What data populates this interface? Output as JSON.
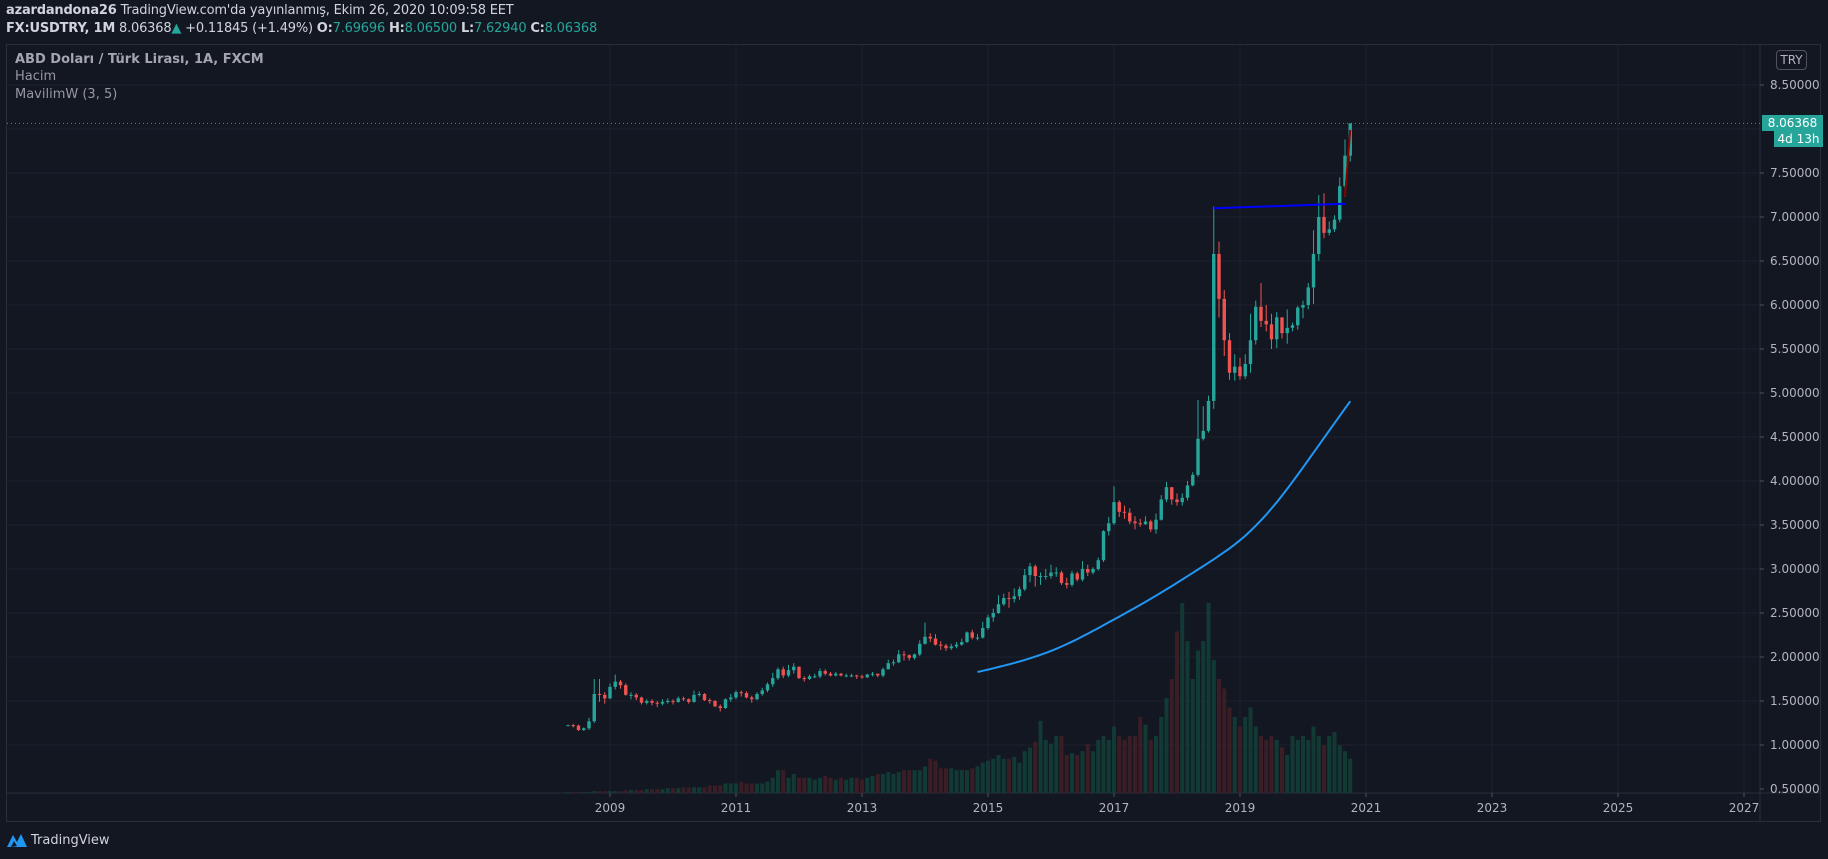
{
  "header": {
    "author": "azardandona26",
    "published": "TradingView.com'da yayınlanmış, Ekim 26, 2020 10:09:58 EET",
    "symbol": "FX:USDTRY, 1M",
    "price": "8.06368",
    "change_arrow": "▲",
    "change": "+0.11845 (+1.49%)",
    "o_label": "O:",
    "o": "7.69696",
    "h_label": "H:",
    "h": "8.06500",
    "l_label": "L:",
    "l": "7.62940",
    "c_label": "C:",
    "c": "8.06368"
  },
  "legend": {
    "main": "ABD Doları / Türk Lirası, 1A, FXCM",
    "volume": "Hacim",
    "indicator": "MavilimW (3, 5)"
  },
  "price_axis": {
    "currency": "TRY",
    "last_price": "8.06368",
    "countdown": "4d 13h",
    "ticks": [
      "8.50000",
      "7.50000",
      "7.00000",
      "6.50000",
      "6.00000",
      "5.50000",
      "5.00000",
      "4.50000",
      "4.00000",
      "3.50000",
      "3.00000",
      "2.50000",
      "2.00000",
      "1.50000",
      "1.00000",
      "0.50000"
    ]
  },
  "time_axis": {
    "ticks": [
      "2009",
      "2011",
      "2013",
      "2015",
      "2017",
      "2019",
      "2021",
      "2023",
      "2025",
      "2027"
    ]
  },
  "footer": {
    "brand": "TradingView"
  },
  "colors": {
    "up": "#26a69a",
    "down": "#ef5350",
    "mavilimw": "#2196f3",
    "trendline": "#0000ff",
    "background": "#131722"
  },
  "chart_data": {
    "type": "candlestick",
    "interval": "1M",
    "start": "2008-05",
    "ylim": [
      0.5,
      8.5
    ],
    "grid": true,
    "close": [
      1.225,
      1.22,
      1.17,
      1.19,
      1.27,
      1.58,
      1.57,
      1.53,
      1.66,
      1.72,
      1.68,
      1.57,
      1.57,
      1.54,
      1.48,
      1.5,
      1.48,
      1.47,
      1.49,
      1.5,
      1.49,
      1.53,
      1.52,
      1.49,
      1.57,
      1.58,
      1.51,
      1.5,
      1.44,
      1.42,
      1.52,
      1.54,
      1.6,
      1.59,
      1.54,
      1.52,
      1.58,
      1.62,
      1.69,
      1.76,
      1.86,
      1.79,
      1.85,
      1.89,
      1.76,
      1.75,
      1.78,
      1.78,
      1.84,
      1.81,
      1.79,
      1.81,
      1.79,
      1.79,
      1.79,
      1.78,
      1.77,
      1.8,
      1.81,
      1.79,
      1.86,
      1.93,
      1.94,
      2.03,
      2.02,
      1.99,
      2.03,
      2.15,
      2.23,
      2.21,
      2.14,
      2.13,
      2.1,
      2.12,
      2.14,
      2.17,
      2.28,
      2.22,
      2.22,
      2.33,
      2.45,
      2.5,
      2.6,
      2.67,
      2.66,
      2.69,
      2.77,
      2.93,
      3.03,
      2.92,
      2.92,
      2.92,
      2.96,
      2.96,
      2.84,
      2.82,
      2.95,
      2.88,
      3.0,
      2.96,
      3.0,
      3.1,
      3.43,
      3.52,
      3.76,
      3.65,
      3.64,
      3.54,
      3.52,
      3.51,
      3.54,
      3.45,
      3.56,
      3.79,
      3.93,
      3.79,
      3.76,
      3.81,
      3.95,
      4.07,
      4.48,
      4.57,
      4.91,
      6.58,
      6.07,
      5.6,
      5.23,
      5.3,
      5.19,
      5.33,
      5.6,
      5.98,
      5.82,
      5.78,
      5.61,
      5.86,
      5.68,
      5.74,
      5.77,
      5.97,
      6.0,
      6.2,
      6.58,
      7.0,
      6.82,
      6.86,
      6.97,
      7.35,
      7.69696,
      8.06368
    ],
    "high": [
      1.23,
      1.24,
      1.23,
      1.2,
      1.31,
      1.75,
      1.75,
      1.6,
      1.7,
      1.8,
      1.74,
      1.7,
      1.6,
      1.59,
      1.55,
      1.52,
      1.52,
      1.5,
      1.52,
      1.53,
      1.52,
      1.55,
      1.55,
      1.53,
      1.62,
      1.61,
      1.59,
      1.53,
      1.51,
      1.46,
      1.53,
      1.58,
      1.62,
      1.62,
      1.61,
      1.56,
      1.6,
      1.65,
      1.71,
      1.82,
      1.88,
      1.89,
      1.91,
      1.93,
      1.89,
      1.78,
      1.8,
      1.81,
      1.87,
      1.86,
      1.83,
      1.83,
      1.82,
      1.81,
      1.81,
      1.8,
      1.8,
      1.81,
      1.83,
      1.81,
      1.88,
      1.97,
      1.97,
      2.08,
      2.07,
      2.03,
      2.04,
      2.19,
      2.39,
      2.27,
      2.26,
      2.18,
      2.15,
      2.15,
      2.17,
      2.21,
      2.29,
      2.31,
      2.26,
      2.4,
      2.48,
      2.55,
      2.7,
      2.72,
      2.74,
      2.78,
      2.8,
      3.0,
      3.07,
      3.05,
      2.96,
      3.0,
      3.05,
      3.02,
      2.98,
      2.9,
      2.98,
      2.97,
      3.09,
      3.05,
      3.02,
      3.13,
      3.44,
      3.59,
      3.94,
      3.78,
      3.72,
      3.69,
      3.6,
      3.57,
      3.6,
      3.56,
      3.63,
      3.84,
      3.99,
      3.92,
      3.86,
      3.86,
      4.0,
      4.1,
      4.92,
      4.85,
      4.97,
      7.12,
      6.72,
      6.17,
      5.68,
      5.44,
      5.4,
      5.44,
      5.9,
      6.05,
      6.25,
      6.0,
      5.9,
      5.92,
      5.8,
      5.95,
      5.8,
      5.99,
      6.05,
      6.25,
      6.85,
      7.25,
      7.27,
      6.95,
      7.02,
      7.45,
      7.88,
      8.065
    ],
    "low": [
      1.22,
      1.2,
      1.16,
      1.16,
      1.17,
      1.25,
      1.49,
      1.47,
      1.52,
      1.63,
      1.64,
      1.56,
      1.52,
      1.51,
      1.46,
      1.46,
      1.45,
      1.43,
      1.45,
      1.47,
      1.46,
      1.48,
      1.5,
      1.47,
      1.48,
      1.55,
      1.5,
      1.47,
      1.43,
      1.38,
      1.41,
      1.49,
      1.52,
      1.55,
      1.53,
      1.48,
      1.51,
      1.56,
      1.6,
      1.66,
      1.74,
      1.76,
      1.77,
      1.81,
      1.75,
      1.72,
      1.74,
      1.76,
      1.76,
      1.79,
      1.78,
      1.78,
      1.78,
      1.77,
      1.77,
      1.75,
      1.75,
      1.76,
      1.78,
      1.77,
      1.77,
      1.86,
      1.9,
      1.93,
      1.96,
      1.96,
      1.97,
      2.01,
      2.14,
      2.17,
      2.13,
      2.08,
      2.07,
      2.08,
      2.1,
      2.13,
      2.16,
      2.2,
      2.19,
      2.21,
      2.31,
      2.4,
      2.49,
      2.58,
      2.56,
      2.62,
      2.65,
      2.75,
      2.85,
      2.8,
      2.82,
      2.88,
      2.89,
      2.91,
      2.82,
      2.78,
      2.8,
      2.86,
      2.86,
      2.92,
      2.94,
      2.98,
      3.08,
      3.38,
      3.5,
      3.59,
      3.57,
      3.51,
      3.45,
      3.48,
      3.5,
      3.42,
      3.4,
      3.55,
      3.76,
      3.73,
      3.72,
      3.72,
      3.78,
      3.94,
      4.05,
      4.46,
      4.55,
      4.82,
      5.86,
      5.42,
      5.15,
      5.14,
      5.15,
      5.16,
      5.23,
      5.55,
      5.75,
      5.7,
      5.5,
      5.51,
      5.62,
      5.56,
      5.7,
      5.72,
      5.85,
      5.95,
      6.01,
      6.5,
      6.76,
      6.79,
      6.83,
      6.94,
      7.23,
      7.6294
    ],
    "volume": [
      0.5,
      0.5,
      0.5,
      0.5,
      0.5,
      1,
      1,
      1,
      1,
      1,
      1,
      1.5,
      1.5,
      1.5,
      1.5,
      2,
      2,
      2,
      2,
      2.5,
      2.5,
      2.5,
      3,
      3,
      3,
      3,
      3,
      4,
      4,
      4,
      5,
      5,
      5,
      6,
      5,
      5,
      5,
      5,
      6,
      8,
      12,
      12,
      8,
      10,
      8,
      8,
      8,
      7,
      8,
      9,
      8,
      7,
      8,
      7,
      8,
      8,
      7,
      8,
      9,
      10,
      10,
      11,
      10,
      11,
      12,
      12,
      12,
      12,
      14,
      18,
      17,
      13,
      13,
      13,
      12,
      12,
      12,
      13,
      14,
      16,
      17,
      18,
      20,
      18,
      18,
      19,
      16,
      22,
      24,
      27,
      38,
      28,
      26,
      30,
      30,
      20,
      21,
      20,
      22,
      26,
      22,
      28,
      30,
      28,
      35,
      30,
      28,
      30,
      30,
      40,
      36,
      28,
      30,
      40,
      50,
      60,
      85,
      100,
      80,
      60,
      75,
      80,
      100,
      70,
      60,
      55,
      45,
      40,
      35,
      40,
      45,
      35,
      30,
      28,
      30,
      28,
      24,
      20,
      30,
      28,
      30,
      28,
      35,
      30,
      25,
      30,
      32,
      25,
      22,
      18
    ],
    "indicator": {
      "name": "MavilimW",
      "params": [
        3,
        5
      ]
    },
    "drawings": [
      {
        "type": "trendline",
        "color": "#0000ff",
        "from": [
          "2018-08",
          7.1
        ],
        "to": [
          "2020-09",
          7.15
        ]
      },
      {
        "type": "trendline",
        "color": "#8b0000",
        "from": [
          "2020-09",
          7.23
        ],
        "to": [
          "2020-10",
          7.99
        ]
      }
    ]
  }
}
